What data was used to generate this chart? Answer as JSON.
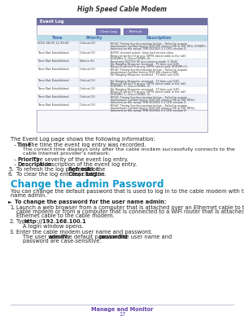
{
  "bg_color": "#ffffff",
  "header_text": "High Speed Cable Modem",
  "header_fontsize": 5.5,
  "header_color": "#333333",
  "screenshot": {
    "title": "Event Log",
    "title_bg": "#7070a0",
    "title_color": "#ffffff",
    "btn1": "Clear Log",
    "btn2": "Refresh",
    "btn_bg": "#7878b8",
    "btn_color": "#ffffff",
    "col_headers": [
      "Time",
      "Priority",
      "Description"
    ],
    "col_header_bg": "#b8dce8",
    "col_header_color": "#4466aa",
    "row_bg_even": "#eef2f8",
    "row_bg_odd": "#ffffff",
    "border_color": "#aaaacc",
    "divider_color": "#ccccdd"
  },
  "body_fs": 4.8,
  "body_color": "#222222",
  "bullet_char": "–",
  "arrow_char": "►",
  "section_title": "Change the admin Password",
  "section_title_color": "#1199cc",
  "section_title_fs": 8.5,
  "footer_line_color": "#aaaacc",
  "footer_text": "Manage and Monitor",
  "footer_page": "17",
  "footer_color": "#6644aa",
  "footer_fs": 4.8
}
